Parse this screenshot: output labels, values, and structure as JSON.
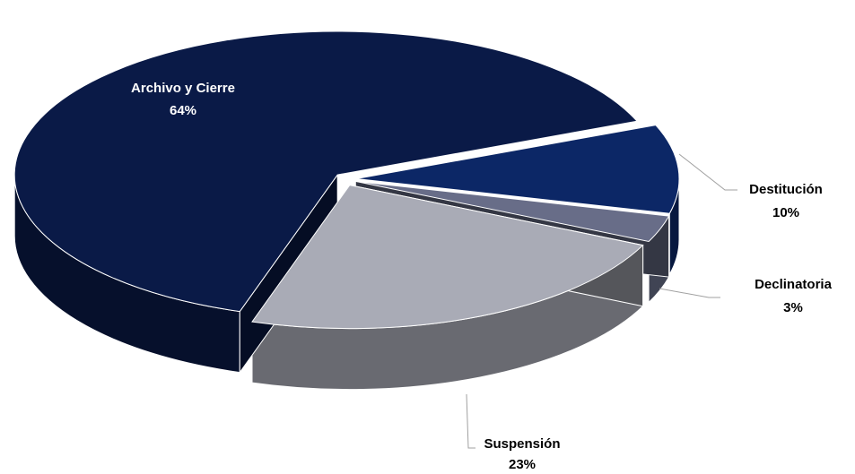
{
  "chart_data": {
    "type": "pie",
    "categories": [
      "Destitución",
      "Declinatoria",
      "Suspensión",
      "Archivo y Cierre"
    ],
    "values": [
      10,
      3,
      23,
      64
    ],
    "value_labels": [
      "10%",
      "3%",
      "23%",
      "64%"
    ],
    "colors": [
      "#0c2766",
      "#686d88",
      "#a9abb6",
      "#0a1a47"
    ]
  }
}
